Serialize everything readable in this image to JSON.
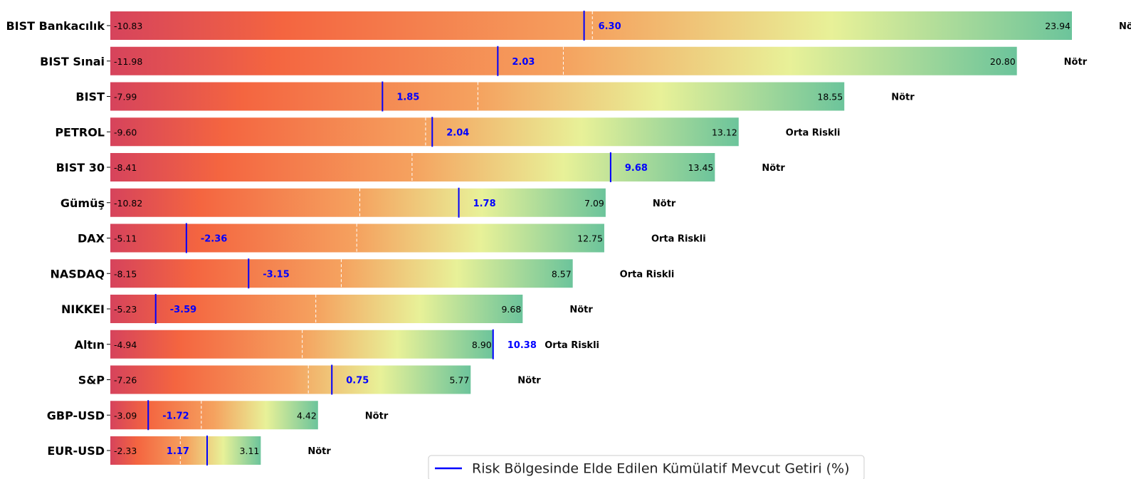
{
  "chart_data": {
    "type": "bar",
    "orientation": "horizontal",
    "categories": [
      "BIST Bankacılık",
      "BIST Sınai",
      "BIST",
      "PETROL",
      "BIST 30",
      "Gümüş",
      "DAX",
      "NASDAQ",
      "NIKKEI",
      "Altın",
      "S&P",
      "GBP-USD",
      "EUR-USD"
    ],
    "rows": [
      {
        "name": "BIST Bankacılık",
        "min": -10.83,
        "max": 23.94,
        "current": 6.3,
        "min_label": "-10.83",
        "max_label": "23.94",
        "current_label": "6.30",
        "risk": "Nötr",
        "midpoint": 6.6
      },
      {
        "name": "BIST Sınai",
        "min": -11.98,
        "max": 20.8,
        "current": 2.03,
        "min_label": "-11.98",
        "max_label": "20.80",
        "current_label": "2.03",
        "risk": "Nötr",
        "midpoint": 4.4
      },
      {
        "name": "BIST",
        "min": -7.99,
        "max": 18.55,
        "current": 1.85,
        "min_label": "-7.99",
        "max_label": "18.55",
        "current_label": "1.85",
        "risk": "Nötr",
        "midpoint": 5.3
      },
      {
        "name": "PETROL",
        "min": -9.6,
        "max": 13.12,
        "current": 2.04,
        "min_label": "-9.60",
        "max_label": "13.12",
        "current_label": "2.04",
        "risk": "Orta Riskli",
        "midpoint": 1.8
      },
      {
        "name": "BIST 30",
        "min": -8.41,
        "max": 13.45,
        "current": 9.68,
        "min_label": "-8.41",
        "max_label": "13.45",
        "current_label": "9.68",
        "risk": "Nötr",
        "midpoint": 2.5
      },
      {
        "name": "Gümüş",
        "min": -10.82,
        "max": 7.09,
        "current": 1.78,
        "min_label": "-10.82",
        "max_label": "7.09",
        "current_label": "1.78",
        "risk": "Nötr",
        "midpoint": -1.8
      },
      {
        "name": "DAX",
        "min": -5.11,
        "max": 12.75,
        "current": -2.36,
        "min_label": "-5.11",
        "max_label": "12.75",
        "current_label": "-2.36",
        "risk": "Orta Riskli",
        "midpoint": 3.8
      },
      {
        "name": "NASDAQ",
        "min": -8.15,
        "max": 8.57,
        "current": -3.15,
        "min_label": "-8.15",
        "max_label": "8.57",
        "current_label": "-3.15",
        "risk": "Orta Riskli",
        "midpoint": 0.2
      },
      {
        "name": "NIKKEI",
        "min": -5.23,
        "max": 9.68,
        "current": -3.59,
        "min_label": "-5.23",
        "max_label": "9.68",
        "current_label": "-3.59",
        "risk": "Nötr",
        "midpoint": 2.2
      },
      {
        "name": "Altın",
        "min": -4.94,
        "max": 8.9,
        "current": 10.38,
        "min_label": "-4.94",
        "max_label": "8.90",
        "current_label": "10.38",
        "risk": "Orta Riskli",
        "midpoint": 2.0
      },
      {
        "name": "S&P",
        "min": -7.26,
        "max": 5.77,
        "current": 0.75,
        "min_label": "-7.26",
        "max_label": "5.77",
        "current_label": "0.75",
        "risk": "Nötr",
        "midpoint": -0.1
      },
      {
        "name": "GBP-USD",
        "min": -3.09,
        "max": 4.42,
        "current": -1.72,
        "min_label": "-3.09",
        "max_label": "4.42",
        "current_label": "-1.72",
        "risk": "Nötr",
        "midpoint": 0.2
      },
      {
        "name": "EUR-USD",
        "min": -2.33,
        "max": 3.11,
        "current": 1.17,
        "min_label": "-2.33",
        "max_label": "3.11",
        "current_label": "1.17",
        "risk": "Nötr",
        "midpoint": 0.2
      }
    ],
    "legend": {
      "label": "Risk Bölgesinde Elde Edilen Kümülatif Mevcut Getiri (%)",
      "placement": "bottom-center",
      "line_color": "#0000ff"
    },
    "colors": {
      "gradient": [
        "#d6435c",
        "#f46540",
        "#f5a25f",
        "#e8f198",
        "#6cc49b"
      ],
      "current_marker": "#0000ff",
      "midpoint_line": "#ffffff"
    },
    "title": "",
    "xlabel": "",
    "ylabel": "",
    "grid": false
  }
}
